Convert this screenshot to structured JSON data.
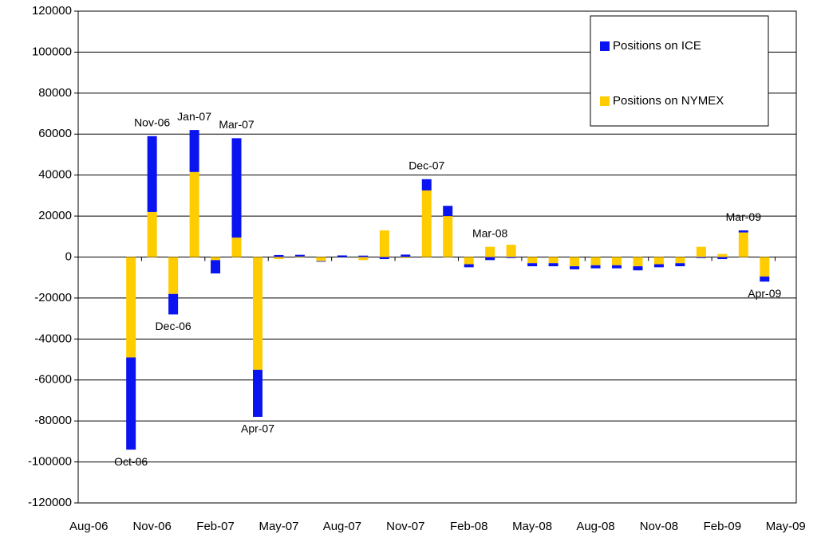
{
  "chart_data": {
    "type": "stacked_bar",
    "categories": [
      "Aug-06",
      null,
      null,
      "Nov-06",
      null,
      null,
      "Feb-07",
      null,
      null,
      "May-07",
      null,
      null,
      "Aug-07",
      null,
      null,
      "Nov-07",
      null,
      null,
      "Feb-08",
      null,
      null,
      "May-08",
      null,
      null,
      "Aug-08",
      null,
      null,
      "Nov-08",
      null,
      null,
      "Feb-09",
      null,
      null,
      "May-09"
    ],
    "bar_labels": [
      null,
      null,
      "Oct-06",
      "Nov-06",
      "Dec-06",
      "Jan-07",
      null,
      "Mar-07",
      "Apr-07",
      null,
      null,
      null,
      null,
      null,
      null,
      null,
      "Dec-07",
      null,
      null,
      "Mar-08",
      null,
      null,
      null,
      null,
      null,
      null,
      null,
      null,
      null,
      null,
      null,
      "Mar-09",
      "Apr-09",
      null
    ],
    "series": [
      {
        "name": "Positions on ICE",
        "color": "#0a14f0",
        "values": [
          0,
          0,
          -45000,
          37000,
          -10000,
          20500,
          -6500,
          48500,
          -23000,
          1000,
          800,
          -300,
          800,
          700,
          -1000,
          1200,
          5500,
          5000,
          -1500,
          -1500,
          -500,
          -1500,
          -1500,
          -1500,
          -1500,
          -1500,
          -2000,
          -1500,
          -1500,
          -500,
          -1000,
          1000,
          -2500,
          0
        ]
      },
      {
        "name": "Positions on NYMEX",
        "color": "#ffcc00",
        "values": [
          0,
          0,
          -49000,
          22000,
          -18000,
          41500,
          -1500,
          9500,
          -55000,
          -1000,
          300,
          -2000,
          0,
          -1500,
          13000,
          -500,
          32500,
          20000,
          -3500,
          5000,
          6000,
          -3000,
          -3000,
          -4500,
          -4000,
          -4000,
          -4500,
          -3500,
          -3000,
          5000,
          1500,
          12000,
          -9500,
          0
        ]
      }
    ],
    "ylim": [
      -120000,
      120000
    ],
    "yticks": [
      -120000,
      -100000,
      -80000,
      -60000,
      -40000,
      -20000,
      0,
      20000,
      40000,
      60000,
      80000,
      100000,
      120000
    ],
    "grid": true,
    "legend": "upper right"
  }
}
